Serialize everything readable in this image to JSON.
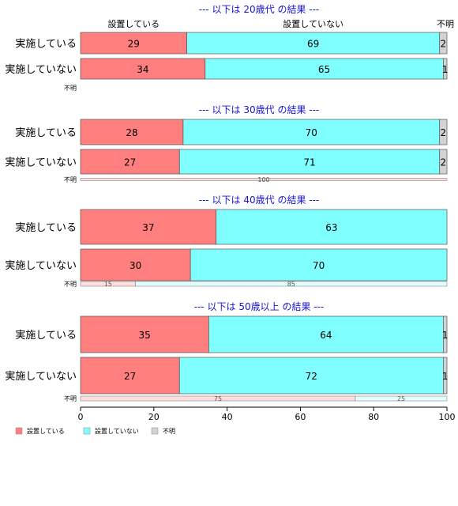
{
  "chart_data": {
    "type": "bar",
    "orientation": "horizontal",
    "stacked": true,
    "xlim": [
      0,
      100
    ],
    "x_ticks": [
      "0",
      "20",
      "40",
      "60",
      "80",
      "100"
    ],
    "grid": false,
    "legend_position": "bottom-left",
    "legend": [
      {
        "label": "設置している",
        "color": "#ff7f7f"
      },
      {
        "label": "設置していない",
        "color": "#7fffff"
      },
      {
        "label": "不明",
        "color": "#d3d3d3"
      }
    ],
    "column_headers": [
      "設置している",
      "設置していない",
      "不明"
    ],
    "colors": {
      "setchi": "#ff7f7f",
      "nashi": "#7fffff",
      "fumei": "#d3d3d3",
      "title": "#1414d2"
    },
    "panels": [
      {
        "title": "--- 以下は 20歳代 の結果 ---",
        "rows": [
          {
            "label": "実施している",
            "values": [
              29,
              69,
              2
            ]
          },
          {
            "label": "実施していない",
            "values": [
              34,
              65,
              1
            ]
          },
          {
            "label": "不明",
            "values": [],
            "value_labels": []
          }
        ]
      },
      {
        "title": "--- 以下は 30歳代 の結果 ---",
        "rows": [
          {
            "label": "実施している",
            "values": [
              28,
              70,
              2
            ]
          },
          {
            "label": "実施していない",
            "values": [
              27,
              71,
              2
            ]
          },
          {
            "label": "不明",
            "values": [
              100,
              0,
              0
            ],
            "value_labels": [
              "100",
              "",
              ""
            ]
          }
        ]
      },
      {
        "title": "--- 以下は 40歳代 の結果 ---",
        "rows": [
          {
            "label": "実施している",
            "values": [
              37,
              63,
              0
            ]
          },
          {
            "label": "実施していない",
            "values": [
              30,
              70,
              0
            ]
          },
          {
            "label": "不明",
            "values": [
              15,
              85,
              0
            ],
            "value_labels": [
              "15",
              "85",
              ""
            ]
          }
        ]
      },
      {
        "title": "--- 以下は 50歳以上 の結果 ---",
        "rows": [
          {
            "label": "実施している",
            "values": [
              35,
              64,
              1
            ]
          },
          {
            "label": "実施していない",
            "values": [
              27,
              72,
              1
            ]
          },
          {
            "label": "不明",
            "values": [
              75,
              25,
              0
            ],
            "value_labels": [
              "75",
              "25",
              ""
            ]
          }
        ]
      }
    ]
  }
}
